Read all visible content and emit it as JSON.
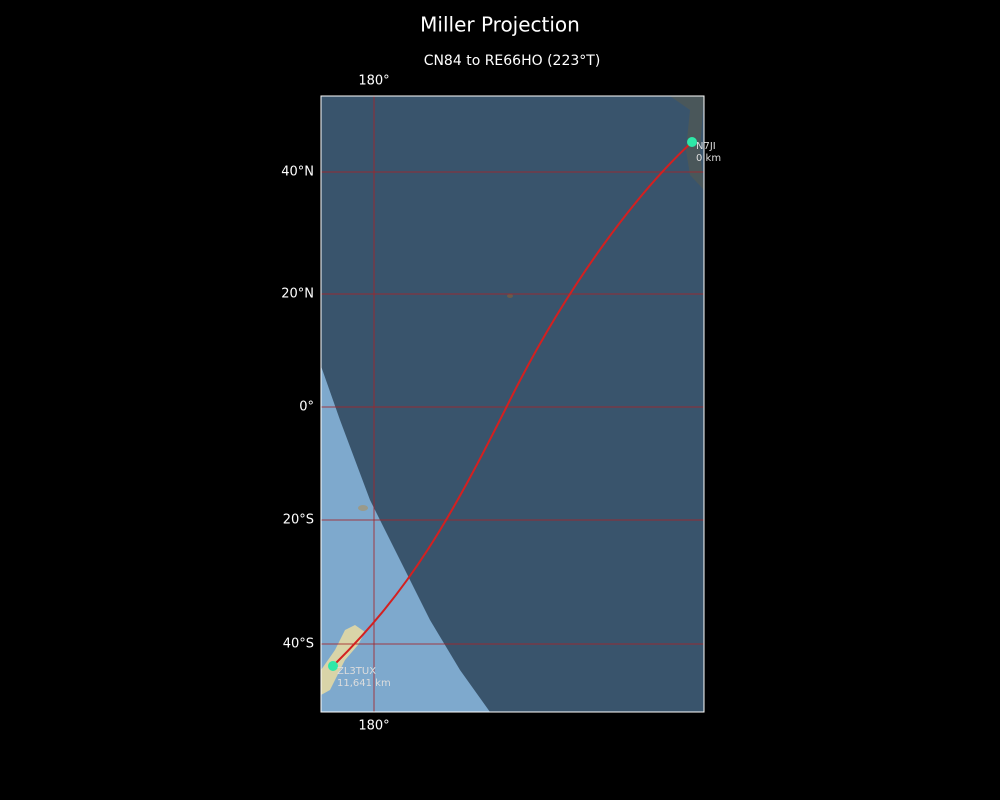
{
  "title": "Miller Projection",
  "subtitle": "CN84 to RE66HO (223°T)",
  "axes": {
    "top_labels": [
      "180°"
    ],
    "bottom_labels": [
      "180°"
    ],
    "left_labels": [
      "40°N",
      "20°N",
      "0°",
      "20°S",
      "40°S"
    ]
  },
  "stations": [
    {
      "call": "N7JI",
      "distance": "0 km"
    },
    {
      "call": "ZL3TUX",
      "distance": "11,641 km"
    }
  ]
}
